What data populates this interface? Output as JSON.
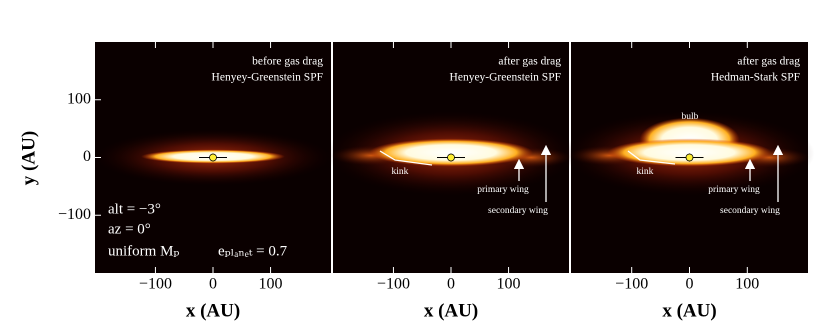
{
  "chart_data": [
    {
      "type": "image",
      "title": "before gas drag",
      "subtitle": "Henyey-Greenstein SPF",
      "xlabel": "x (AU)",
      "ylabel": "y (AU)",
      "xlim": [
        -205,
        205
      ],
      "ylim": [
        -200,
        200
      ],
      "xticks": [
        {
          "value": -100,
          "label": "−100"
        },
        0,
        100
      ],
      "yticks": [
        {
          "value": -100,
          "label": "−100"
        },
        0,
        100
      ],
      "annotations": [
        "alt = −3°",
        "az = 0°",
        "uniform Mₚ",
        "eₚₗₐₙₑₜ = 0.7"
      ]
    },
    {
      "type": "image",
      "title": "after gas drag",
      "subtitle": "Henyey-Greenstein SPF",
      "xlabel": "x (AU)",
      "xlim": [
        -205,
        205
      ],
      "ylim": [
        -200,
        200
      ],
      "xticks": [
        {
          "value": -100,
          "label": "−100"
        },
        0,
        100
      ],
      "annotations": [
        "kink",
        "primary wing",
        "secondary wing"
      ]
    },
    {
      "type": "image",
      "title": "after gas drag",
      "subtitle": "Hedman-Stark SPF",
      "xlabel": "x (AU)",
      "xlim": [
        -205,
        205
      ],
      "ylim": [
        -200,
        200
      ],
      "xticks": [
        {
          "value": -100,
          "label": "−100"
        },
        0,
        100
      ],
      "annotations": [
        "bulb",
        "kink",
        "primary wing",
        "secondary wing"
      ]
    }
  ]
}
